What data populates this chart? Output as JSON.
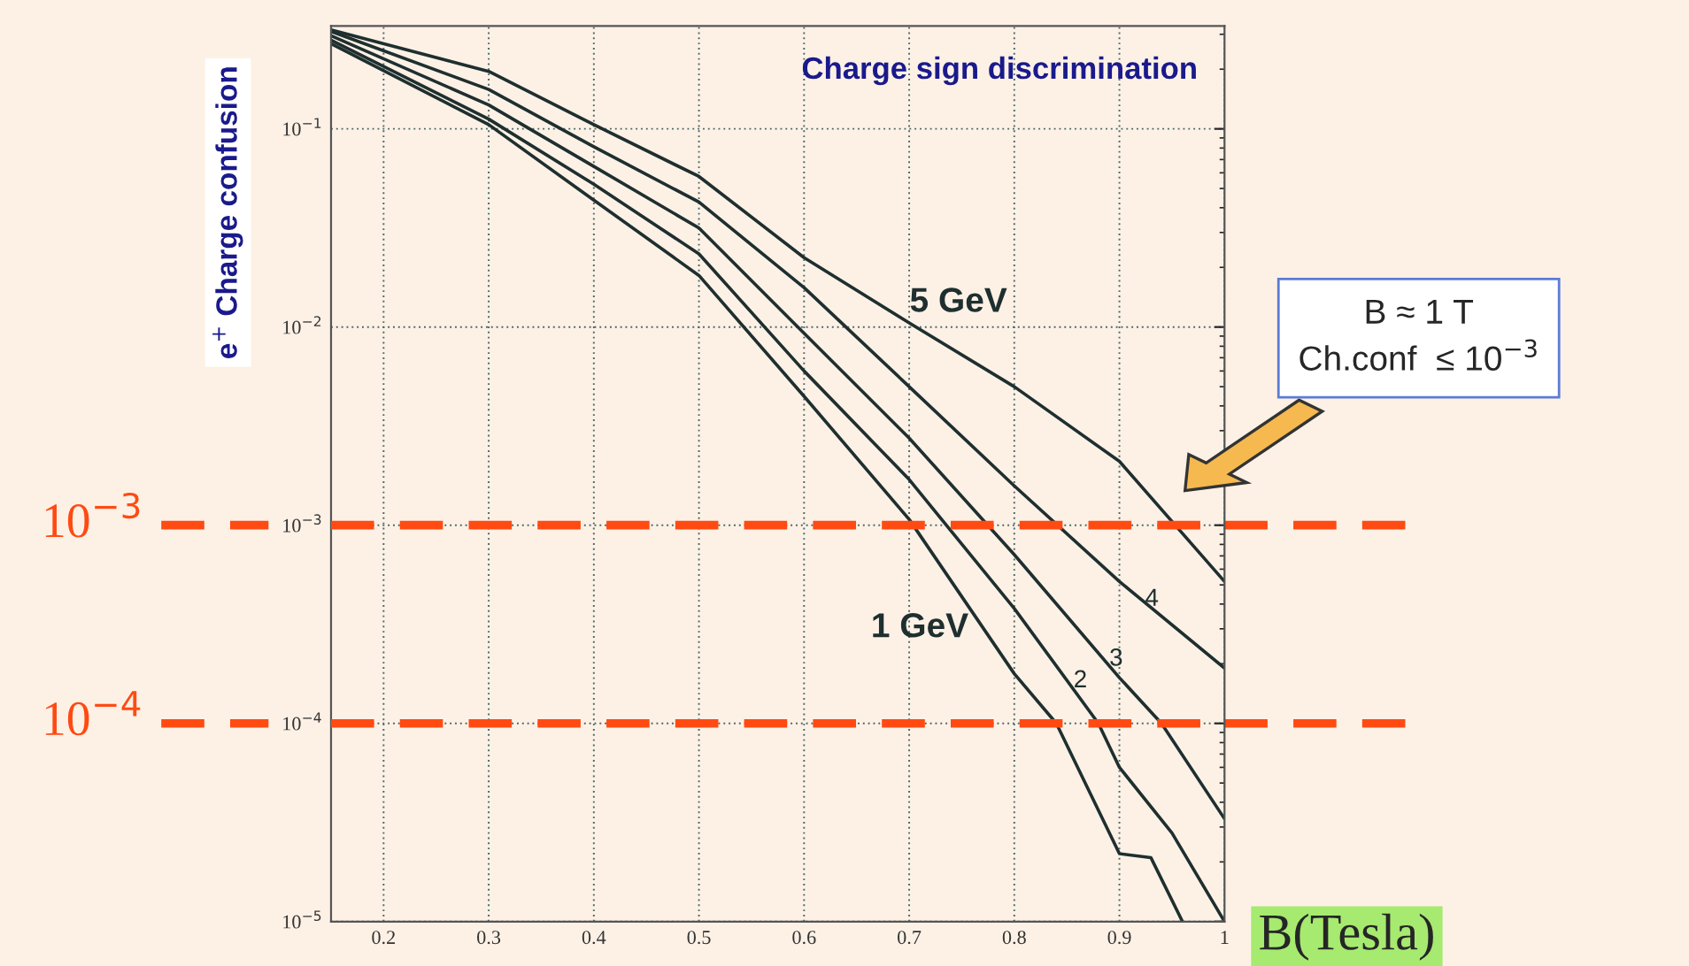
{
  "chart_data": {
    "type": "line",
    "title": "Charge sign discrimination",
    "xlabel": "B(Tesla)",
    "ylabel": "e$^{+}$ Charge confusion",
    "log": "y",
    "xlim": [
      0.15,
      1
    ],
    "ylim": [
      1e-05,
      0.33
    ],
    "xticks": [
      0.2,
      0.3,
      0.4,
      0.5,
      0.6,
      0.7,
      0.8,
      0.9,
      1
    ],
    "yticks": [
      {
        "value": 1e-05,
        "label": "10$^{−5}$"
      },
      {
        "value": 0.0001,
        "label": "10$^{−4}$"
      },
      {
        "value": 0.001,
        "label": "10$^{−3}$"
      },
      {
        "value": 0.01,
        "label": "10$^{−2}$"
      },
      {
        "value": 0.1,
        "label": "10$^{−1}$"
      }
    ],
    "grid": true,
    "marker": "none",
    "line_style": "solid",
    "series": [
      {
        "name": "1 GeV",
        "color": "#1f2f2f",
        "x": [
          0.15,
          0.3,
          0.4,
          0.5,
          0.6,
          0.7,
          0.8,
          0.84,
          0.9,
          0.93,
          0.96
        ],
        "values": [
          0.269,
          0.105,
          0.0437,
          0.0182,
          0.00447,
          0.00107,
          0.000178,
          0.0001,
          2.2e-05,
          2.1e-05,
          1e-05
        ]
      },
      {
        "name": "2",
        "color": "#1f2f2f",
        "x": [
          0.15,
          0.3,
          0.4,
          0.5,
          0.6,
          0.7,
          0.8,
          0.88,
          0.9,
          0.95,
          1.0
        ],
        "values": [
          0.28,
          0.112,
          0.0525,
          0.0234,
          0.006,
          0.0017,
          0.00038,
          0.0001,
          6e-05,
          2.8e-05,
          1e-05
        ]
      },
      {
        "name": "3",
        "color": "#1f2f2f",
        "x": [
          0.15,
          0.3,
          0.4,
          0.5,
          0.6,
          0.7,
          0.8,
          0.9,
          0.94,
          1.0
        ],
        "values": [
          0.295,
          0.132,
          0.0646,
          0.0316,
          0.0093,
          0.00275,
          0.00071,
          0.00017,
          0.0001,
          3.3e-05
        ]
      },
      {
        "name": "4",
        "color": "#1f2f2f",
        "x": [
          0.15,
          0.3,
          0.4,
          0.5,
          0.6,
          0.7,
          0.8,
          0.9,
          1.0
        ],
        "values": [
          0.31,
          0.158,
          0.0813,
          0.0427,
          0.0158,
          0.005,
          0.00158,
          0.00052,
          0.00019
        ]
      },
      {
        "name": "5 GeV",
        "color": "#1f2f2f",
        "x": [
          0.15,
          0.3,
          0.4,
          0.5,
          0.6,
          0.7,
          0.8,
          0.9,
          1.0
        ],
        "values": [
          0.316,
          0.195,
          0.105,
          0.0575,
          0.0224,
          0.0105,
          0.005,
          0.0021,
          0.00052
        ]
      }
    ],
    "ref_lines": [
      {
        "axis": "y",
        "value": 0.001,
        "label": "10$^{−3}$",
        "color": "#ff4a12",
        "line_style": "dashed"
      },
      {
        "axis": "y",
        "value": 0.0001,
        "label": "10$^{−4}$",
        "color": "#ff4a12",
        "line_style": "dashed"
      }
    ],
    "annotations": [
      "B ≈ 1 T\nCh.conf  ≤ 10$^{−3}$"
    ]
  }
}
